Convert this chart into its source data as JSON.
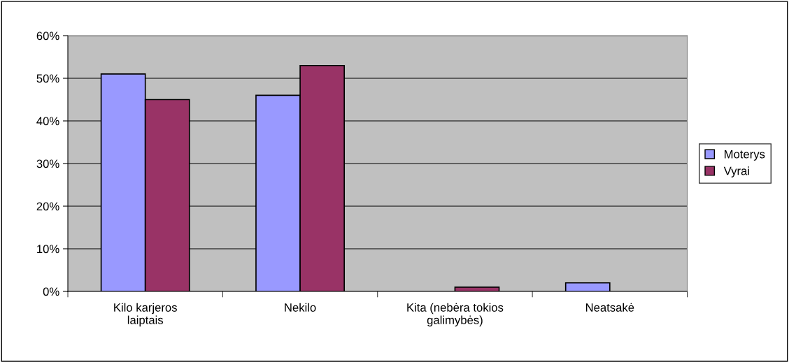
{
  "chart_data": {
    "type": "bar",
    "categories": [
      "Kilo karjeros\nlaiptais",
      "Nekilo",
      "Kita (nebėra tokios\ngalimybės)",
      "Neatsakė"
    ],
    "series": [
      {
        "name": "Moterys",
        "color": "#9999ff",
        "values": [
          51,
          46,
          null,
          2
        ]
      },
      {
        "name": "Vyrai",
        "color": "#993366",
        "values": [
          45,
          53,
          1,
          null
        ]
      }
    ],
    "ylim": [
      0,
      60
    ],
    "yticks": [
      {
        "value": 0,
        "label": "0%"
      },
      {
        "value": 10,
        "label": "10%"
      },
      {
        "value": 20,
        "label": "20%"
      },
      {
        "value": 30,
        "label": "30%"
      },
      {
        "value": 40,
        "label": "40%"
      },
      {
        "value": 50,
        "label": "50%"
      },
      {
        "value": 60,
        "label": "60%"
      }
    ],
    "grid": "y",
    "legend": "right"
  }
}
